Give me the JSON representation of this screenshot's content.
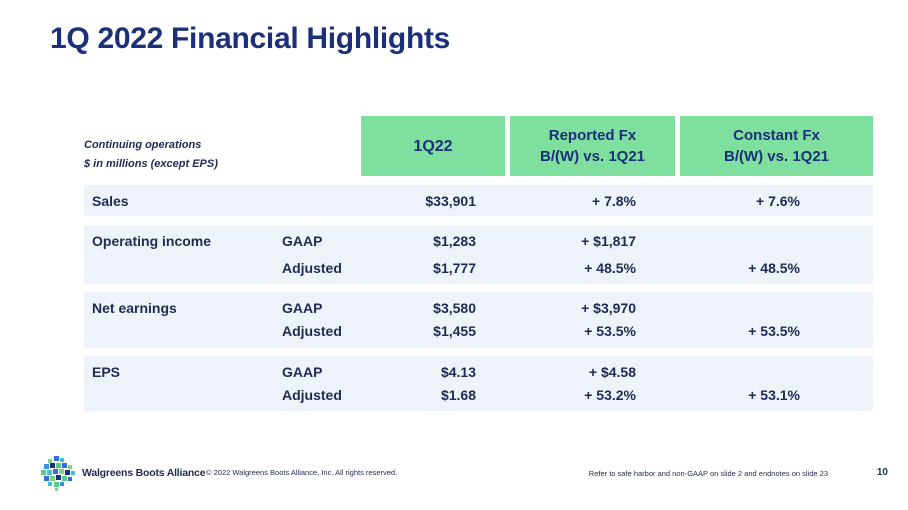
{
  "title": "1Q 2022 Financial Highlights",
  "caption": {
    "line1": "Continuing operations",
    "line2": "$ in millions (except EPS)"
  },
  "headers": {
    "period": "1Q22",
    "reported_line1": "Reported Fx",
    "reported_line2": "B/(W) vs. 1Q21",
    "constant_line1": "Constant Fx",
    "constant_line2": "B/(W) vs. 1Q21"
  },
  "rows": {
    "sales": {
      "label": "Sales",
      "value": "$33,901",
      "reported": "+ 7.8%",
      "constant": "+ 7.6%"
    },
    "operating_income": {
      "label": "Operating income",
      "gaap": {
        "label": "GAAP",
        "value": "$1,283",
        "reported": "+ $1,817",
        "constant": ""
      },
      "adjusted": {
        "label": "Adjusted",
        "value": "$1,777",
        "reported": "+ 48.5%",
        "constant": "+ 48.5%"
      }
    },
    "net_earnings": {
      "label": "Net earnings",
      "gaap": {
        "label": "GAAP",
        "value": "$3,580",
        "reported": "+ $3,970",
        "constant": ""
      },
      "adjusted": {
        "label": "Adjusted",
        "value": "$1,455",
        "reported": "+ 53.5%",
        "constant": "+ 53.5%"
      }
    },
    "eps": {
      "label": "EPS",
      "gaap": {
        "label": "GAAP",
        "value": "$4.13",
        "reported": "+ $4.58",
        "constant": ""
      },
      "adjusted": {
        "label": "Adjusted",
        "value": "$1.68",
        "reported": "+ 53.2%",
        "constant": "+ 53.1%"
      }
    }
  },
  "footer": {
    "brand": "Walgreens Boots Alliance",
    "copyright": "© 2022 Walgreens Boots Alliance, Inc. All rights reserved.",
    "note": "Refer to safe harbor and non-GAAP on slide 2 and endnotes on slide 23",
    "page": "10"
  },
  "colors": {
    "title": "#1c2f7a",
    "header_bg": "#7fdf9f",
    "band_bg": "#eef3fa",
    "text": "#1f2a55"
  }
}
